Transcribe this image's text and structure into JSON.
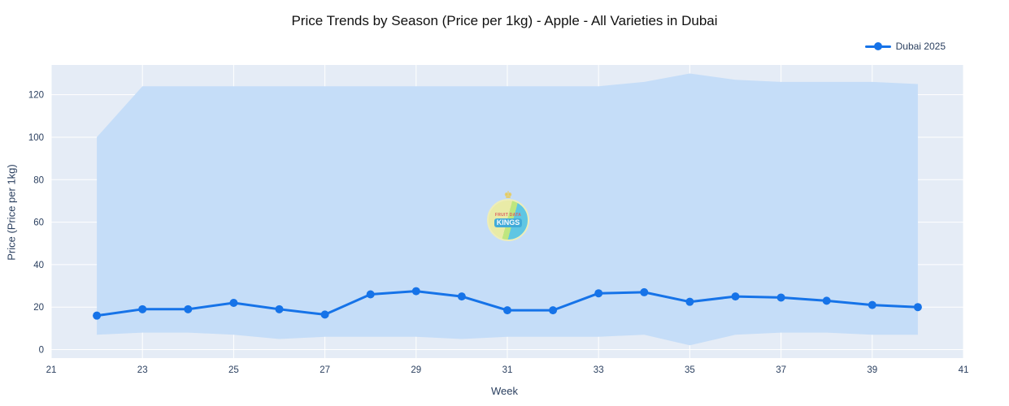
{
  "title": "Price Trends by Season (Price per 1kg) - Apple - All Varieties in Dubai",
  "legend": {
    "items": [
      {
        "label": "Dubai 2025",
        "color": "#1673e8"
      }
    ]
  },
  "axes": {
    "x_title": "Week",
    "y_title": "Price (Price per 1kg)"
  },
  "watermark": {
    "line_top": "FRUIT DATA",
    "line_main": "KINGS",
    "crown_icon": "crown"
  },
  "colors": {
    "line": "#1673e8",
    "band_fill": "#c5ddf8",
    "plot_background": "#e5ecf6",
    "grid": "#ffffff"
  },
  "chart_data": {
    "type": "line",
    "title": "Price Trends by Season (Price per 1kg) - Apple - All Varieties in Dubai",
    "xlabel": "Week",
    "ylabel": "Price (Price per 1kg)",
    "xlim": [
      21,
      41
    ],
    "ylim": [
      -4,
      134
    ],
    "xticks": [
      21,
      23,
      25,
      27,
      29,
      31,
      33,
      35,
      37,
      39,
      41
    ],
    "yticks": [
      0,
      20,
      40,
      60,
      80,
      100,
      120
    ],
    "grid": true,
    "legend_position": "top-right",
    "x": [
      22,
      23,
      24,
      25,
      26,
      27,
      28,
      29,
      30,
      31,
      32,
      33,
      34,
      35,
      36,
      37,
      38,
      39,
      40
    ],
    "series": [
      {
        "name": "Dubai 2025",
        "color": "#1673e8",
        "values": [
          16,
          19,
          19,
          22,
          19,
          16.5,
          26,
          27.5,
          25,
          18.5,
          18.5,
          26.5,
          27,
          22.5,
          25,
          24.5,
          23,
          21,
          20
        ]
      }
    ],
    "band": {
      "name": "price-range",
      "color": "#c5ddf8",
      "upper": [
        100,
        124,
        124,
        124,
        124,
        124,
        124,
        124,
        124,
        124,
        124,
        124,
        126,
        130,
        127,
        126,
        126,
        126,
        125
      ],
      "lower": [
        7,
        8,
        8,
        7,
        5,
        6,
        6,
        6,
        5,
        6,
        6,
        6,
        7,
        2,
        7,
        8,
        8,
        7,
        7
      ]
    }
  }
}
